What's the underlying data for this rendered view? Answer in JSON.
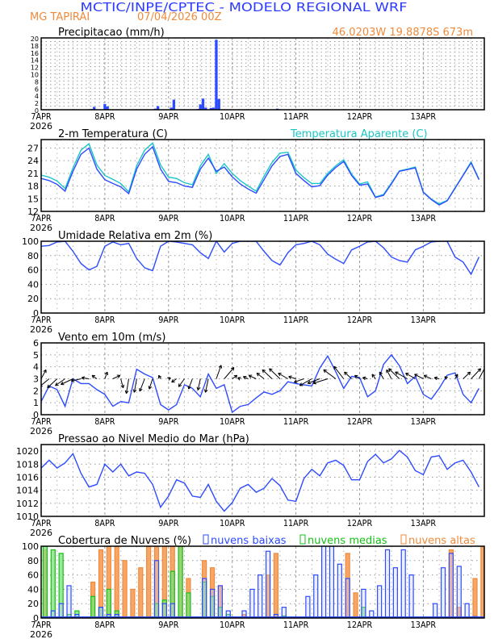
{
  "header": {
    "title": "MCTIC/INPE/CPTEC - MODELO REGIONAL WRF",
    "station": "MG TAPIRAI",
    "run": "07/04/2026 00Z",
    "location": "46.0203W 19.8878S 673m"
  },
  "colors": {
    "title": "#2b3cff",
    "orange": "#f08a3a",
    "blue": "#2d4bff",
    "cyan": "#19c6c6",
    "green": "#16c016",
    "orange_fill": "#f5a260"
  },
  "x_axis": {
    "labels": [
      "7APR",
      "8APR",
      "9APR",
      "10APR",
      "11APR",
      "12APR",
      "13APR"
    ],
    "year": "2026",
    "range_hours": [
      0,
      167
    ],
    "step_hours": 3
  },
  "chart_data": [
    {
      "id": "precip",
      "type": "bar",
      "title": "Precipitacao (mm/h)",
      "ylim": [
        0,
        20
      ],
      "yticks": [
        0,
        2,
        4,
        6,
        8,
        10,
        12,
        14,
        16,
        18,
        20
      ],
      "series": [
        {
          "name": "Precipitacao",
          "points": [
            [
              19,
              0.2
            ],
            [
              20,
              0.8
            ],
            [
              24,
              1.6
            ],
            [
              25,
              0.9
            ],
            [
              43,
              0.3
            ],
            [
              44,
              1.0
            ],
            [
              49,
              0.6
            ],
            [
              50,
              2.8
            ],
            [
              59,
              0.2
            ],
            [
              60,
              1.5
            ],
            [
              61,
              3.1
            ],
            [
              62,
              0.6
            ],
            [
              64,
              0.5
            ],
            [
              65,
              0.6
            ],
            [
              66,
              19.5
            ],
            [
              67,
              3.0
            ],
            [
              85,
              0.1
            ],
            [
              86,
              0.1
            ],
            [
              87,
              0.1
            ],
            [
              89,
              0.3
            ],
            [
              108,
              0.1
            ],
            [
              114,
              0.1
            ],
            [
              132,
              0.1
            ],
            [
              133,
              0.1
            ],
            [
              142,
              0.1
            ],
            [
              156,
              0.1
            ],
            [
              157,
              0.1
            ]
          ]
        }
      ]
    },
    {
      "id": "temp",
      "type": "line",
      "title": "2-m Temperatura (C)",
      "legend": "Temperatura Aparente (C)",
      "ylim": [
        12,
        29
      ],
      "yticks": [
        12,
        15,
        18,
        21,
        24,
        27
      ],
      "series": [
        {
          "name": "Temperatura",
          "values": [
            19.8,
            19.3,
            18.4,
            16.8,
            21.5,
            25.5,
            27.0,
            22.0,
            19.5,
            18.6,
            17.8,
            16.2,
            22.0,
            25.5,
            27.3,
            22.0,
            19.1,
            18.8,
            18.0,
            17.7,
            22.0,
            24.6,
            21.5,
            22.5,
            20.2,
            18.5,
            17.3,
            16.3,
            19.5,
            22.8,
            25.0,
            25.5,
            21.0,
            19.3,
            17.8,
            18.1,
            20.6,
            22.4,
            23.8,
            20.5,
            18.2,
            18.5,
            15.3,
            15.8,
            18.5,
            21.5,
            21.9,
            22.3,
            16.5,
            14.8,
            13.5,
            14.5,
            17.5,
            20.5,
            23.5,
            19.5
          ]
        },
        {
          "name": "Temperatura Aparente",
          "values": [
            20.6,
            20.1,
            19.2,
            17.4,
            22.3,
            26.5,
            28.0,
            23.0,
            20.5,
            19.6,
            18.6,
            16.6,
            22.8,
            26.5,
            28.2,
            23.0,
            20.1,
            19.8,
            18.8,
            18.3,
            22.8,
            25.5,
            21.0,
            23.3,
            21.0,
            19.3,
            18.0,
            16.8,
            20.3,
            23.6,
            25.8,
            26.0,
            21.8,
            20.0,
            18.6,
            18.6,
            21.0,
            22.8,
            24.2,
            20.8,
            18.5,
            19.0,
            15.4,
            16.0,
            18.7,
            21.6,
            22.0,
            22.5,
            16.6,
            14.9,
            13.8,
            14.6,
            17.6,
            20.6,
            23.7,
            19.6
          ]
        }
      ]
    },
    {
      "id": "rh",
      "type": "line",
      "title": "Umidade Relativa em 2m (%)",
      "ylim": [
        0,
        100
      ],
      "yticks": [
        0,
        20,
        40,
        60,
        80,
        100
      ],
      "series": [
        {
          "name": "Umidade Relativa",
          "values": [
            93,
            94,
            99,
            100,
            86,
            69,
            60,
            65,
            93,
            99,
            95,
            97,
            76,
            63,
            59,
            93,
            100,
            99,
            97,
            95,
            84,
            76,
            100,
            85,
            97,
            100,
            100,
            100,
            86,
            73,
            67,
            84,
            95,
            97,
            100,
            95,
            82,
            75,
            69,
            88,
            93,
            99,
            100,
            91,
            78,
            73,
            71,
            88,
            93,
            99,
            100,
            100,
            78,
            71,
            54,
            78
          ]
        }
      ]
    },
    {
      "id": "wind",
      "type": "line",
      "title": "Vento em 10m (m/s)",
      "ylim": [
        0,
        6
      ],
      "yticks": [
        0,
        1,
        2,
        3,
        4,
        5,
        6
      ],
      "series": [
        {
          "name": "Velocidade",
          "values": [
            1.1,
            2.4,
            2.1,
            0.7,
            3.0,
            2.6,
            2.6,
            2.1,
            1.7,
            0.7,
            1.1,
            1.0,
            3.8,
            3.4,
            3.1,
            0.85,
            0.4,
            0.85,
            2.5,
            2.2,
            1.5,
            3.4,
            2.2,
            2.5,
            0.2,
            0.7,
            0.85,
            1.4,
            1.9,
            1.7,
            2.0,
            2.75,
            2.6,
            2.5,
            2.4,
            3.9,
            4.9,
            3.6,
            2.2,
            3.2,
            3.1,
            1.5,
            2.0,
            4.2,
            5.0,
            4.1,
            2.6,
            3.2,
            1.7,
            1.3,
            2.2,
            3.3,
            3.5,
            1.7,
            1.0,
            2.2
          ]
        }
      ],
      "vectors": {
        "u": [
          1,
          -2,
          -2,
          -2,
          -2.5,
          -2,
          -1.5,
          -1,
          0.5,
          1.5,
          0.5,
          -0.5,
          -0.5,
          -1,
          -0.7,
          -0.4,
          0.4,
          -1,
          -1.2,
          -0.8,
          -0.5,
          -0.6,
          1,
          2,
          1,
          -0.5,
          -1,
          -1.5,
          -1.5,
          -2,
          -2.2,
          -2,
          -1.5,
          -2,
          -2.5,
          -2.5,
          -3,
          -2.5,
          -2,
          -1.5,
          -1,
          -1,
          -0.7,
          -0.8,
          -1,
          -2.2,
          -2.5,
          -2,
          -1.8,
          -1.5,
          -1,
          -0.5,
          0.5,
          1.5,
          2,
          1.5
        ],
        "v": [
          0.8,
          -0.7,
          -0.8,
          -0.6,
          -0.5,
          -0.2,
          0.1,
          0.3,
          0.6,
          0.3,
          -0.8,
          -1.3,
          -1.2,
          -1.1,
          -0.9,
          0.3,
          0.1,
          -0.3,
          -0.7,
          -0.9,
          -1,
          -1.2,
          1.2,
          1,
          0.3,
          0.1,
          0.2,
          0.3,
          0.5,
          0.8,
          0.9,
          0.5,
          0.2,
          -0.3,
          -0.6,
          -0.4,
          -0.4,
          0.8,
          1.1,
          0.6,
          0.3,
          0.1,
          0.4,
          0.6,
          0.8,
          0.9,
          0.6,
          0.5,
          0.4,
          0.3,
          0.1,
          0.2,
          0.4,
          0.6,
          0.9,
          1.2
        ]
      }
    },
    {
      "id": "pressure",
      "type": "line",
      "title": "Pressao ao Nivel Medio do Mar (hPa)",
      "ylim": [
        1010,
        1021
      ],
      "yticks": [
        1010,
        1012,
        1014,
        1016,
        1018,
        1020
      ],
      "series": [
        {
          "name": "Pressao",
          "values": [
            1017.4,
            1018.6,
            1017.4,
            1018.2,
            1019.6,
            1016.6,
            1014.5,
            1014.9,
            1018.0,
            1016.8,
            1018.0,
            1016.2,
            1016.8,
            1016.6,
            1014.9,
            1011.4,
            1013.1,
            1015.6,
            1015.1,
            1013.1,
            1012.9,
            1014.9,
            1012.3,
            1010.8,
            1012.1,
            1014.3,
            1014.9,
            1013.7,
            1014.3,
            1015.8,
            1014.7,
            1012.5,
            1012.3,
            1015.8,
            1017.2,
            1016.2,
            1018.2,
            1018.6,
            1017.8,
            1015.6,
            1015.6,
            1018.4,
            1019.5,
            1018.2,
            1018.8,
            1020.1,
            1019.1,
            1017.0,
            1016.4,
            1019.1,
            1019.3,
            1017.2,
            1018.2,
            1018.6,
            1016.8,
            1014.5
          ]
        }
      ]
    },
    {
      "id": "clouds",
      "type": "bar",
      "title": "Cobertura de Nuvens (%)",
      "ylim": [
        0,
        100
      ],
      "yticks": [
        0,
        20,
        40,
        60,
        80,
        100
      ],
      "series": [
        {
          "name": "nuvens altas",
          "values": [
            95,
            0,
            0,
            0,
            0,
            0,
            50,
            95,
            100,
            100,
            80,
            40,
            70,
            100,
            100,
            100,
            100,
            100,
            55,
            0,
            80,
            70,
            45,
            0,
            0,
            5,
            0,
            0,
            60,
            90,
            0,
            0,
            0,
            0,
            0,
            0,
            0,
            0,
            90,
            35,
            0,
            0,
            0,
            0,
            0,
            0,
            0,
            0,
            0,
            0,
            0,
            95,
            15,
            0,
            55,
            100
          ]
        },
        {
          "name": "nuvens medias",
          "values": [
            100,
            95,
            90,
            5,
            10,
            0,
            30,
            15,
            40,
            10,
            0,
            0,
            0,
            0,
            20,
            25,
            65,
            100,
            35,
            0,
            50,
            30,
            15,
            5,
            0,
            0,
            0,
            0,
            0,
            0,
            3,
            0,
            0,
            0,
            0,
            0,
            0,
            0,
            0,
            0,
            15,
            0,
            0,
            0,
            0,
            0,
            0,
            0,
            0,
            0,
            0,
            0,
            0,
            0,
            0,
            0
          ]
        },
        {
          "name": "nuvens baixas",
          "values": [
            0,
            10,
            20,
            45,
            5,
            0,
            0,
            15,
            5,
            5,
            0,
            0,
            0,
            0,
            80,
            20,
            20,
            0,
            0,
            0,
            55,
            40,
            45,
            10,
            0,
            10,
            40,
            60,
            93,
            5,
            15,
            0,
            0,
            30,
            60,
            100,
            100,
            75,
            55,
            0,
            40,
            10,
            45,
            95,
            70,
            95,
            60,
            0,
            0,
            20,
            70,
            90,
            72,
            20,
            2,
            0
          ]
        }
      ]
    }
  ]
}
